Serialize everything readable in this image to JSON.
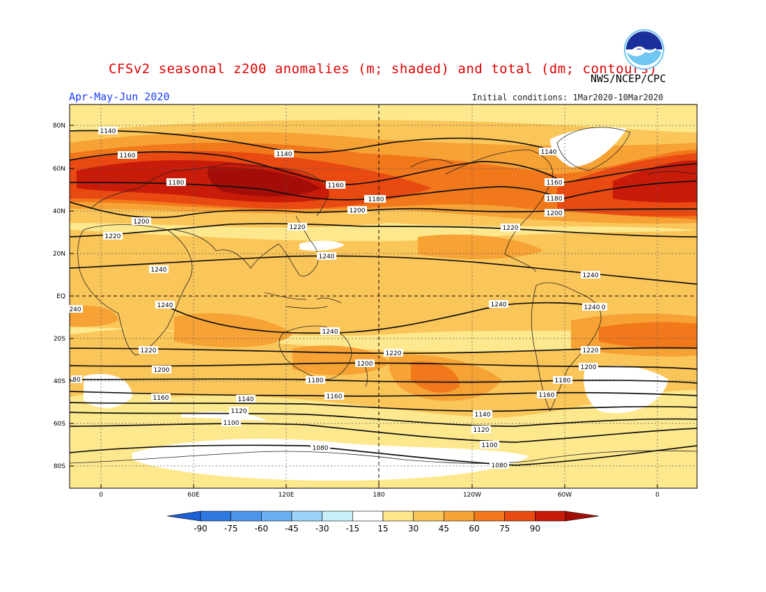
{
  "title": "CFSv2 seasonal z200 anomalies (m; shaded) and total (dm; contours)",
  "period": "Apr-May-Jun 2020",
  "agency": "NWS/NCEP/CPC",
  "initial_conditions": "Initial conditions: 1Mar2020-10Mar2020",
  "logo_text": "NOAA",
  "lat_labels": [
    "80N",
    "60N",
    "40N",
    "20N",
    "EQ",
    "20S",
    "40S",
    "60S",
    "80S"
  ],
  "lon_labels": [
    "0",
    "60E",
    "120E",
    "180",
    "120W",
    "60W",
    "0"
  ],
  "colorbar": {
    "ticks": [
      "-90",
      "-75",
      "-60",
      "-45",
      "-30",
      "-15",
      "15",
      "30",
      "45",
      "60",
      "75",
      "90"
    ],
    "colors": [
      "#1f5fd6",
      "#2f78e0",
      "#4d95ea",
      "#6bb0f2",
      "#9dd3f8",
      "#c8f0fa",
      "#ffffff",
      "#fde88e",
      "#fbc659",
      "#f6a235",
      "#f2781c",
      "#e84a12",
      "#c91b0a",
      "#a30d08"
    ]
  },
  "contour_labels": [
    {
      "text": "1140"
    },
    {
      "text": "1160"
    },
    {
      "text": "1180"
    },
    {
      "text": "1200"
    },
    {
      "text": "1220"
    },
    {
      "text": "1240"
    },
    {
      "text": "1140"
    },
    {
      "text": "1160"
    },
    {
      "text": "1180"
    },
    {
      "text": "1200"
    },
    {
      "text": "1220"
    },
    {
      "text": "1240"
    },
    {
      "text": "1140"
    },
    {
      "text": "1160"
    },
    {
      "text": "1180"
    },
    {
      "text": "1200"
    },
    {
      "text": "1220"
    },
    {
      "text": "1240"
    },
    {
      "text": "1240"
    },
    {
      "text": "1240"
    },
    {
      "text": "1240"
    },
    {
      "text": "1220"
    },
    {
      "text": "1200"
    },
    {
      "text": "1180"
    },
    {
      "text": "1160"
    },
    {
      "text": "1140"
    },
    {
      "text": "1120"
    },
    {
      "text": "1100"
    },
    {
      "text": "1080"
    },
    {
      "text": "1220"
    },
    {
      "text": "1200"
    },
    {
      "text": "1180"
    },
    {
      "text": "1160"
    },
    {
      "text": "1140"
    },
    {
      "text": "1120"
    },
    {
      "text": "1100"
    },
    {
      "text": "1080"
    },
    {
      "text": "1240"
    },
    {
      "text": "1220"
    },
    {
      "text": "1200"
    },
    {
      "text": "1160"
    },
    {
      "text": "1180"
    },
    {
      "text": "240"
    },
    {
      "text": "80"
    },
    {
      "text": "1240"
    },
    {
      "text": "1220"
    },
    {
      "text": "1200"
    },
    {
      "text": "1160"
    }
  ]
}
